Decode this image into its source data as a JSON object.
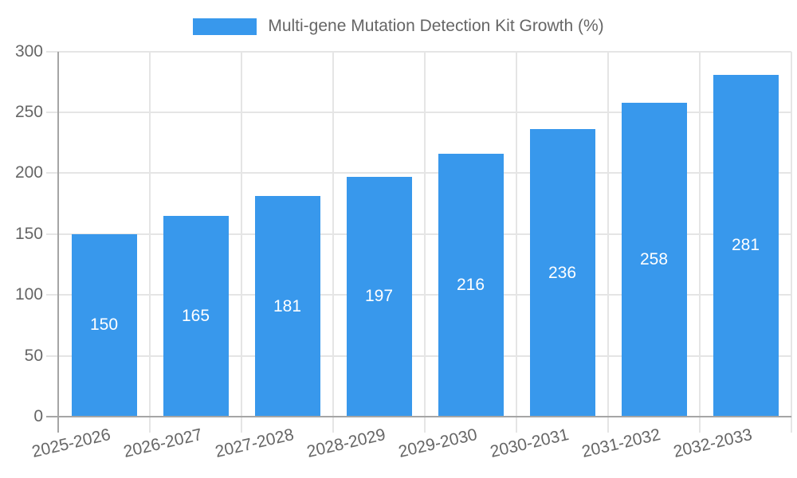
{
  "chart_data": {
    "type": "bar",
    "title": "Multi-gene Mutation Detection Kit Growth (%)",
    "categories": [
      "2025-2026",
      "2026-2027",
      "2027-2028",
      "2028-2029",
      "2029-2030",
      "2030-2031",
      "2031-2032",
      "2032-2033"
    ],
    "values": [
      150,
      165,
      181,
      197,
      216,
      236,
      258,
      281
    ],
    "xlabel": "",
    "ylabel": "",
    "ylim": [
      0,
      300
    ],
    "yticks": [
      0,
      50,
      100,
      150,
      200,
      250,
      300
    ],
    "grid": true,
    "legend_position": "top-center",
    "bar_color": "#3898ec",
    "grid_color": "#e5e5e5",
    "axis_color": "#a5a5a5",
    "tick_label_color": "#666666",
    "value_label_color": "#ffffff"
  }
}
